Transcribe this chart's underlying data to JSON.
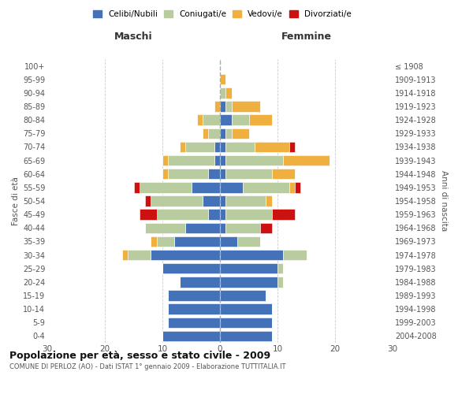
{
  "age_groups": [
    "0-4",
    "5-9",
    "10-14",
    "15-19",
    "20-24",
    "25-29",
    "30-34",
    "35-39",
    "40-44",
    "45-49",
    "50-54",
    "55-59",
    "60-64",
    "65-69",
    "70-74",
    "75-79",
    "80-84",
    "85-89",
    "90-94",
    "95-99",
    "100+"
  ],
  "birth_years": [
    "2004-2008",
    "1999-2003",
    "1994-1998",
    "1989-1993",
    "1984-1988",
    "1979-1983",
    "1974-1978",
    "1969-1973",
    "1964-1968",
    "1959-1963",
    "1954-1958",
    "1949-1953",
    "1944-1948",
    "1939-1943",
    "1934-1938",
    "1929-1933",
    "1924-1928",
    "1919-1923",
    "1914-1918",
    "1909-1913",
    "≤ 1908"
  ],
  "male": {
    "celibi": [
      10,
      9,
      9,
      9,
      7,
      10,
      12,
      8,
      6,
      2,
      3,
      5,
      2,
      1,
      1,
      0,
      0,
      0,
      0,
      0,
      0
    ],
    "coniugati": [
      0,
      0,
      0,
      0,
      0,
      0,
      4,
      3,
      7,
      9,
      9,
      9,
      7,
      8,
      5,
      2,
      3,
      0,
      0,
      0,
      0
    ],
    "vedovi": [
      0,
      0,
      0,
      0,
      0,
      0,
      1,
      1,
      0,
      0,
      0,
      0,
      1,
      1,
      1,
      1,
      1,
      1,
      0,
      0,
      0
    ],
    "divorziati": [
      0,
      0,
      0,
      0,
      0,
      0,
      0,
      0,
      0,
      3,
      1,
      1,
      0,
      0,
      0,
      0,
      0,
      0,
      0,
      0,
      0
    ]
  },
  "female": {
    "nubili": [
      9,
      9,
      9,
      8,
      10,
      10,
      11,
      3,
      1,
      1,
      1,
      4,
      1,
      1,
      1,
      1,
      2,
      1,
      0,
      0,
      0
    ],
    "coniugate": [
      0,
      0,
      0,
      0,
      1,
      1,
      4,
      4,
      6,
      8,
      7,
      8,
      8,
      10,
      5,
      1,
      3,
      1,
      1,
      0,
      0
    ],
    "vedove": [
      0,
      0,
      0,
      0,
      0,
      0,
      0,
      0,
      0,
      0,
      1,
      1,
      4,
      8,
      6,
      3,
      4,
      5,
      1,
      1,
      0
    ],
    "divorziate": [
      0,
      0,
      0,
      0,
      0,
      0,
      0,
      0,
      2,
      4,
      0,
      1,
      0,
      0,
      1,
      0,
      0,
      0,
      0,
      0,
      0
    ]
  },
  "colors": {
    "celibi": "#4472b8",
    "coniugati": "#b8cca0",
    "vedovi": "#f0b040",
    "divorziati": "#cc1111"
  },
  "xlim": 30,
  "title": "Popolazione per età, sesso e stato civile - 2009",
  "subtitle": "COMUNE DI PERLOZ (AO) - Dati ISTAT 1° gennaio 2009 - Elaborazione TUTTITALIA.IT",
  "xlabel_left": "Maschi",
  "xlabel_right": "Femmine",
  "ylabel_left": "Fasce di età",
  "ylabel_right": "Anni di nascita",
  "legend_labels": [
    "Celibi/Nubili",
    "Coniugati/e",
    "Vedovi/e",
    "Divorziati/e"
  ],
  "background_color": "#ffffff",
  "grid_color": "#cccccc"
}
